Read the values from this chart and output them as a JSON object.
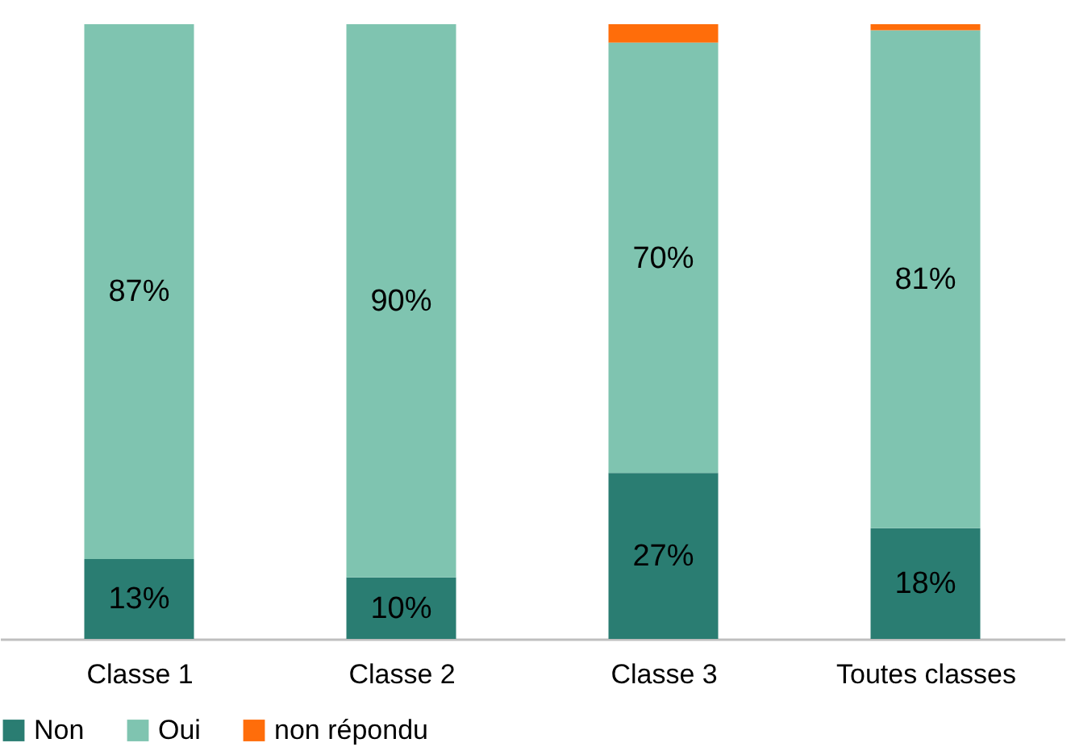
{
  "chart_data": {
    "type": "bar",
    "stacked": true,
    "categories": [
      "Classe 1",
      "Classe 2",
      "Classe 3",
      "Toutes classes"
    ],
    "ylim": [
      0,
      100
    ],
    "tick_labels": "x",
    "grid": false,
    "legend": "bottom",
    "series": [
      {
        "name": "Non",
        "color": "#2a7d72",
        "values": [
          13,
          10,
          27,
          18
        ],
        "value_labels": [
          "13%",
          "10%",
          "27%",
          "18%"
        ]
      },
      {
        "name": "Oui",
        "color": "#7fc4b0",
        "values": [
          87,
          90,
          70,
          81
        ],
        "value_labels": [
          "87%",
          "90%",
          "70%",
          "81%"
        ]
      },
      {
        "name": "non répondu",
        "color": "#ff6d0a",
        "values": [
          0,
          0,
          3,
          1
        ],
        "value_labels": [
          null,
          null,
          null,
          null
        ]
      }
    ]
  }
}
